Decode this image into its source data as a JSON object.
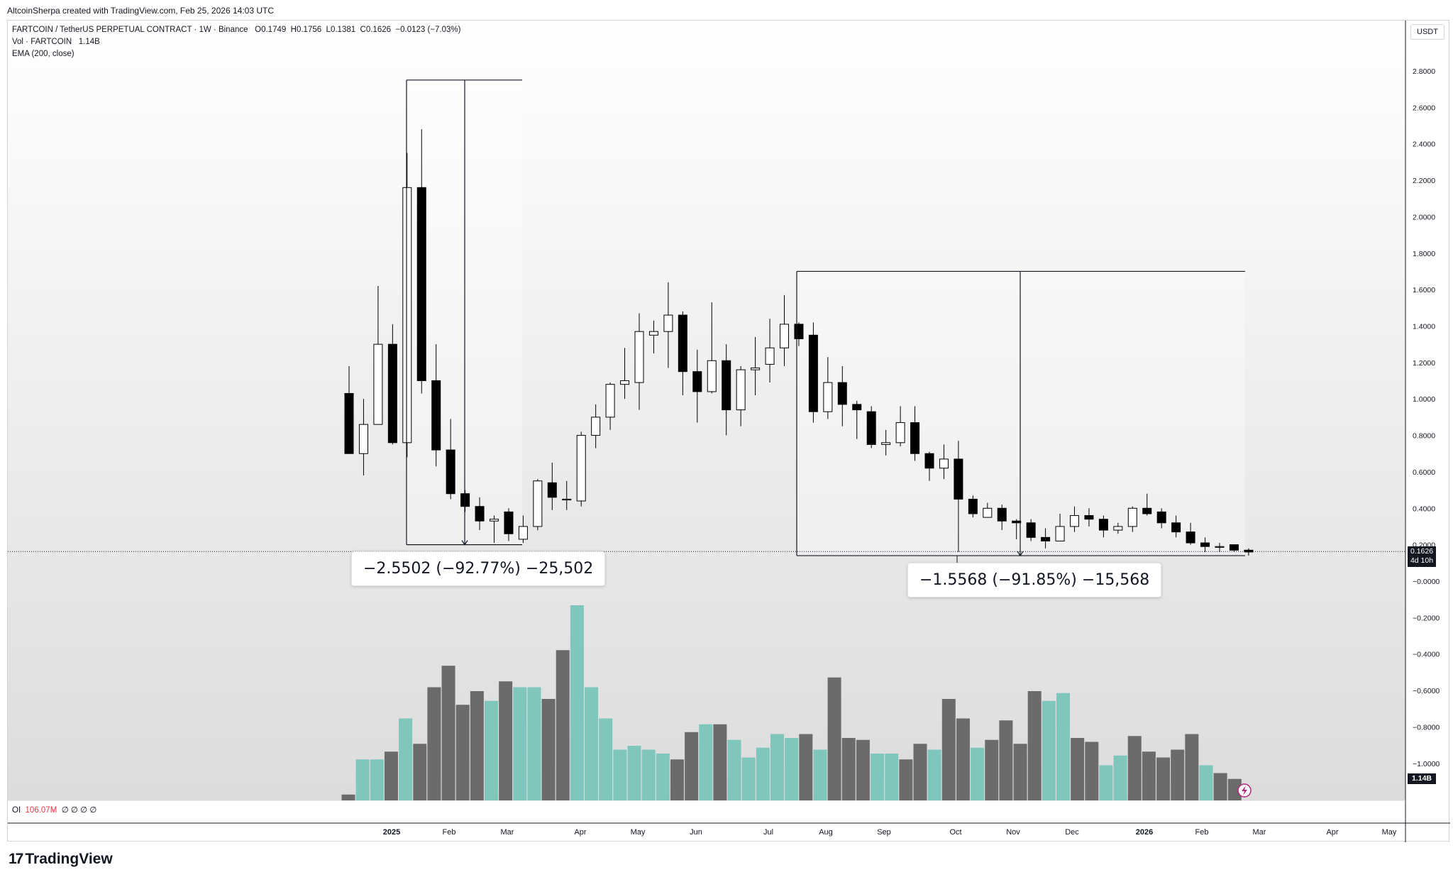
{
  "header": {
    "credit": "AltcoinSherpa created with TradingView.com, Feb 25, 2026 14:03 UTC"
  },
  "legend": {
    "symbol": "FARTCOIN / TetherUS PERPETUAL CONTRACT · 1W · Binance",
    "o_label": "O",
    "o": "0.1749",
    "h_label": "H",
    "h": "0.1756",
    "l_label": "L",
    "l": "0.1381",
    "c_label": "C",
    "c": "0.1626",
    "change": "−0.0123 (−7.03%)",
    "vol_label": "Vol · FARTCOIN",
    "vol": "1.14B",
    "ema": "EMA (200, close)"
  },
  "oi": {
    "label": "OI",
    "value": "106.07M",
    "extra": "∅ ∅ ∅ ∅"
  },
  "currency": "USDT",
  "price_badge": {
    "price": "0.1626",
    "countdown": "4d 10h"
  },
  "vol_badge": "1.14B",
  "measurements": [
    {
      "label": "−2.5502 (−92.77%) −25,502"
    },
    {
      "label": "−1.5568 (−91.85%) −15,568"
    }
  ],
  "brand": {
    "logo": "17",
    "name": "TradingView"
  },
  "colors": {
    "up_body": "#ffffff",
    "down_body": "#000000",
    "vol_up": "#7fc6bd",
    "vol_down": "#6b6b6b",
    "accent": "#2962ff"
  },
  "chart_data": {
    "type": "candlestick",
    "y_axis_ticks": [
      "2.8000",
      "2.6000",
      "2.4000",
      "2.2000",
      "2.0000",
      "1.8000",
      "1.6000",
      "1.4000",
      "1.2000",
      "1.0000",
      "0.8000",
      "0.6000",
      "0.4000",
      "0.2000",
      "−0.0000",
      "−0.2000",
      "−0.4000",
      "−0.6000",
      "−0.8000",
      "−1.0000"
    ],
    "x_axis_labels": [
      "2025",
      "Feb",
      "Mar",
      "Apr",
      "May",
      "Jun",
      "Jul",
      "Aug",
      "Sep",
      "Oct",
      "Nov",
      "Dec",
      "2026",
      "Feb",
      "Mar",
      "Apr",
      "May"
    ],
    "ylim": [
      -1.2,
      2.9
    ],
    "candles": [
      {
        "o": 1.03,
        "h": 1.18,
        "l": 0.7,
        "c": 0.7
      },
      {
        "o": 0.7,
        "h": 1.0,
        "l": 0.58,
        "c": 0.86
      },
      {
        "o": 0.86,
        "h": 1.62,
        "l": 0.86,
        "c": 1.3
      },
      {
        "o": 1.3,
        "h": 1.41,
        "l": 0.75,
        "c": 0.76
      },
      {
        "o": 0.76,
        "h": 2.35,
        "l": 0.68,
        "c": 2.16
      },
      {
        "o": 2.16,
        "h": 2.48,
        "l": 1.03,
        "c": 1.1
      },
      {
        "o": 1.1,
        "h": 1.3,
        "l": 0.63,
        "c": 0.72
      },
      {
        "o": 0.72,
        "h": 0.89,
        "l": 0.45,
        "c": 0.48
      },
      {
        "o": 0.48,
        "h": 0.5,
        "l": 0.38,
        "c": 0.41
      },
      {
        "o": 0.41,
        "h": 0.46,
        "l": 0.28,
        "c": 0.33
      },
      {
        "o": 0.33,
        "h": 0.36,
        "l": 0.21,
        "c": 0.34
      },
      {
        "o": 0.38,
        "h": 0.4,
        "l": 0.22,
        "c": 0.26
      },
      {
        "o": 0.23,
        "h": 0.36,
        "l": 0.21,
        "c": 0.3
      },
      {
        "o": 0.3,
        "h": 0.56,
        "l": 0.28,
        "c": 0.55
      },
      {
        "o": 0.54,
        "h": 0.65,
        "l": 0.39,
        "c": 0.46
      },
      {
        "o": 0.45,
        "h": 0.55,
        "l": 0.39,
        "c": 0.45
      },
      {
        "o": 0.44,
        "h": 0.82,
        "l": 0.41,
        "c": 0.8
      },
      {
        "o": 0.8,
        "h": 0.97,
        "l": 0.73,
        "c": 0.9
      },
      {
        "o": 0.9,
        "h": 1.09,
        "l": 0.83,
        "c": 1.08
      },
      {
        "o": 1.08,
        "h": 1.28,
        "l": 1.0,
        "c": 1.1
      },
      {
        "o": 1.09,
        "h": 1.47,
        "l": 0.94,
        "c": 1.37
      },
      {
        "o": 1.35,
        "h": 1.43,
        "l": 1.25,
        "c": 1.37
      },
      {
        "o": 1.37,
        "h": 1.64,
        "l": 1.17,
        "c": 1.46
      },
      {
        "o": 1.46,
        "h": 1.48,
        "l": 1.02,
        "c": 1.15
      },
      {
        "o": 1.15,
        "h": 1.27,
        "l": 0.87,
        "c": 1.04
      },
      {
        "o": 1.04,
        "h": 1.53,
        "l": 1.03,
        "c": 1.21
      },
      {
        "o": 1.21,
        "h": 1.3,
        "l": 0.8,
        "c": 0.94
      },
      {
        "o": 0.94,
        "h": 1.18,
        "l": 0.85,
        "c": 1.16
      },
      {
        "o": 1.16,
        "h": 1.34,
        "l": 1.02,
        "c": 1.17
      },
      {
        "o": 1.19,
        "h": 1.44,
        "l": 1.09,
        "c": 1.28
      },
      {
        "o": 1.28,
        "h": 1.57,
        "l": 1.18,
        "c": 1.41
      },
      {
        "o": 1.41,
        "h": 1.42,
        "l": 1.29,
        "c": 1.33
      },
      {
        "o": 1.35,
        "h": 1.42,
        "l": 0.87,
        "c": 0.93
      },
      {
        "o": 0.93,
        "h": 1.23,
        "l": 0.89,
        "c": 1.09
      },
      {
        "o": 1.09,
        "h": 1.18,
        "l": 0.85,
        "c": 0.97
      },
      {
        "o": 0.97,
        "h": 0.99,
        "l": 0.78,
        "c": 0.94
      },
      {
        "o": 0.93,
        "h": 0.96,
        "l": 0.73,
        "c": 0.75
      },
      {
        "o": 0.75,
        "h": 0.83,
        "l": 0.69,
        "c": 0.76
      },
      {
        "o": 0.76,
        "h": 0.96,
        "l": 0.74,
        "c": 0.87
      },
      {
        "o": 0.87,
        "h": 0.96,
        "l": 0.66,
        "c": 0.7
      },
      {
        "o": 0.7,
        "h": 0.71,
        "l": 0.55,
        "c": 0.62
      },
      {
        "o": 0.62,
        "h": 0.75,
        "l": 0.56,
        "c": 0.67
      },
      {
        "o": 0.67,
        "h": 0.77,
        "l": 0.16,
        "c": 0.45
      },
      {
        "o": 0.45,
        "h": 0.47,
        "l": 0.35,
        "c": 0.37
      },
      {
        "o": 0.35,
        "h": 0.43,
        "l": 0.36,
        "c": 0.4
      },
      {
        "o": 0.4,
        "h": 0.42,
        "l": 0.28,
        "c": 0.33
      },
      {
        "o": 0.33,
        "h": 0.34,
        "l": 0.23,
        "c": 0.32
      },
      {
        "o": 0.32,
        "h": 0.34,
        "l": 0.22,
        "c": 0.24
      },
      {
        "o": 0.24,
        "h": 0.29,
        "l": 0.18,
        "c": 0.22
      },
      {
        "o": 0.22,
        "h": 0.37,
        "l": 0.22,
        "c": 0.3
      },
      {
        "o": 0.3,
        "h": 0.41,
        "l": 0.27,
        "c": 0.36
      },
      {
        "o": 0.36,
        "h": 0.4,
        "l": 0.3,
        "c": 0.34
      },
      {
        "o": 0.34,
        "h": 0.36,
        "l": 0.24,
        "c": 0.28
      },
      {
        "o": 0.28,
        "h": 0.32,
        "l": 0.26,
        "c": 0.3
      },
      {
        "o": 0.3,
        "h": 0.41,
        "l": 0.27,
        "c": 0.4
      },
      {
        "o": 0.4,
        "h": 0.48,
        "l": 0.36,
        "c": 0.37
      },
      {
        "o": 0.38,
        "h": 0.4,
        "l": 0.29,
        "c": 0.32
      },
      {
        "o": 0.32,
        "h": 0.36,
        "l": 0.24,
        "c": 0.27
      },
      {
        "o": 0.27,
        "h": 0.32,
        "l": 0.2,
        "c": 0.21
      },
      {
        "o": 0.21,
        "h": 0.24,
        "l": 0.16,
        "c": 0.19
      },
      {
        "o": 0.19,
        "h": 0.21,
        "l": 0.16,
        "c": 0.19
      },
      {
        "o": 0.2,
        "h": 0.2,
        "l": 0.16,
        "c": 0.17
      },
      {
        "o": 0.17,
        "h": 0.18,
        "l": 0.14,
        "c": 0.16
      }
    ],
    "volume": [
      {
        "v": 0.03,
        "up": false
      },
      {
        "v": 0.21,
        "up": true
      },
      {
        "v": 0.21,
        "up": true
      },
      {
        "v": 0.25,
        "up": false
      },
      {
        "v": 0.42,
        "up": true
      },
      {
        "v": 0.29,
        "up": false
      },
      {
        "v": 0.58,
        "up": false
      },
      {
        "v": 0.69,
        "up": false
      },
      {
        "v": 0.49,
        "up": false
      },
      {
        "v": 0.56,
        "up": false
      },
      {
        "v": 0.51,
        "up": true
      },
      {
        "v": 0.61,
        "up": false
      },
      {
        "v": 0.58,
        "up": true
      },
      {
        "v": 0.58,
        "up": true
      },
      {
        "v": 0.52,
        "up": false
      },
      {
        "v": 0.77,
        "up": false
      },
      {
        "v": 1.0,
        "up": true
      },
      {
        "v": 0.58,
        "up": true
      },
      {
        "v": 0.42,
        "up": true
      },
      {
        "v": 0.26,
        "up": true
      },
      {
        "v": 0.28,
        "up": true
      },
      {
        "v": 0.26,
        "up": true
      },
      {
        "v": 0.24,
        "up": true
      },
      {
        "v": 0.21,
        "up": false
      },
      {
        "v": 0.35,
        "up": false
      },
      {
        "v": 0.39,
        "up": true
      },
      {
        "v": 0.39,
        "up": false
      },
      {
        "v": 0.31,
        "up": true
      },
      {
        "v": 0.22,
        "up": true
      },
      {
        "v": 0.27,
        "up": true
      },
      {
        "v": 0.34,
        "up": true
      },
      {
        "v": 0.32,
        "up": true
      },
      {
        "v": 0.34,
        "up": false
      },
      {
        "v": 0.26,
        "up": true
      },
      {
        "v": 0.63,
        "up": false
      },
      {
        "v": 0.32,
        "up": false
      },
      {
        "v": 0.31,
        "up": false
      },
      {
        "v": 0.24,
        "up": true
      },
      {
        "v": 0.24,
        "up": true
      },
      {
        "v": 0.21,
        "up": false
      },
      {
        "v": 0.29,
        "up": false
      },
      {
        "v": 0.26,
        "up": true
      },
      {
        "v": 0.52,
        "up": false
      },
      {
        "v": 0.42,
        "up": false
      },
      {
        "v": 0.27,
        "up": true
      },
      {
        "v": 0.31,
        "up": false
      },
      {
        "v": 0.41,
        "up": false
      },
      {
        "v": 0.29,
        "up": false
      },
      {
        "v": 0.56,
        "up": false
      },
      {
        "v": 0.51,
        "up": true
      },
      {
        "v": 0.55,
        "up": true
      },
      {
        "v": 0.32,
        "up": false
      },
      {
        "v": 0.3,
        "up": false
      },
      {
        "v": 0.18,
        "up": true
      },
      {
        "v": 0.23,
        "up": true
      },
      {
        "v": 0.33,
        "up": false
      },
      {
        "v": 0.25,
        "up": false
      },
      {
        "v": 0.22,
        "up": false
      },
      {
        "v": 0.26,
        "up": false
      },
      {
        "v": 0.34,
        "up": false
      },
      {
        "v": 0.18,
        "up": true
      },
      {
        "v": 0.14,
        "up": false
      },
      {
        "v": 0.11,
        "up": false
      }
    ],
    "measure_tools": [
      {
        "from_price": 2.75,
        "to_price": 0.2,
        "change": "−2.5502 (−92.77%) −25,502"
      },
      {
        "from_price": 1.7,
        "to_price": 0.14,
        "change": "−1.5568 (−91.85%) −15,568"
      }
    ]
  }
}
